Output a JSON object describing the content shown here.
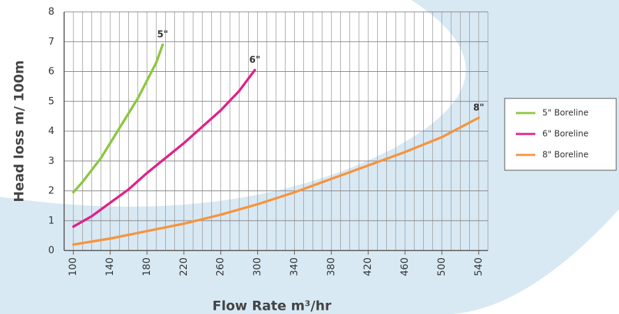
{
  "chart_data": {
    "type": "line",
    "xlabel": "Flow Rate m³/hr",
    "ylabel": "Head loss m/ 100m",
    "xlim": [
      90,
      550
    ],
    "ylim": [
      0,
      8
    ],
    "xticks": [
      100,
      140,
      180,
      220,
      260,
      300,
      340,
      380,
      420,
      460,
      500,
      540
    ],
    "xminorticks": [
      90,
      100,
      110,
      120,
      130,
      140,
      150,
      160,
      170,
      180,
      190,
      200,
      210,
      220,
      230,
      240,
      250,
      260,
      270,
      280,
      290,
      300,
      310,
      320,
      330,
      340,
      350,
      360,
      370,
      380,
      390,
      400,
      410,
      420,
      430,
      440,
      450,
      460,
      470,
      480,
      490,
      500,
      510,
      520,
      530,
      540,
      550
    ],
    "yticks": [
      0,
      1,
      2,
      3,
      4,
      5,
      6,
      7,
      8
    ],
    "grid": true,
    "legend": "right",
    "series": [
      {
        "name": "5\" Boreline",
        "end_label": "5\"",
        "color": "#8dc63f",
        "x": [
          100,
          110,
          120,
          130,
          140,
          150,
          160,
          170,
          180,
          190,
          197
        ],
        "values": [
          1.95,
          2.3,
          2.7,
          3.1,
          3.6,
          4.1,
          4.6,
          5.1,
          5.7,
          6.3,
          6.9
        ]
      },
      {
        "name": "6\" Boreline",
        "end_label": "6\"",
        "color": "#e0218a",
        "x": [
          100,
          120,
          140,
          160,
          180,
          200,
          220,
          240,
          260,
          280,
          297
        ],
        "values": [
          0.8,
          1.15,
          1.6,
          2.05,
          2.6,
          3.1,
          3.6,
          4.15,
          4.7,
          5.35,
          6.05
        ]
      },
      {
        "name": "8\" Boreline",
        "end_label": "8\"",
        "color": "#f7943e",
        "x": [
          100,
          140,
          180,
          220,
          260,
          300,
          340,
          380,
          420,
          460,
          500,
          540
        ],
        "values": [
          0.2,
          0.4,
          0.65,
          0.9,
          1.2,
          1.55,
          1.95,
          2.4,
          2.85,
          3.3,
          3.8,
          4.45
        ]
      }
    ]
  }
}
